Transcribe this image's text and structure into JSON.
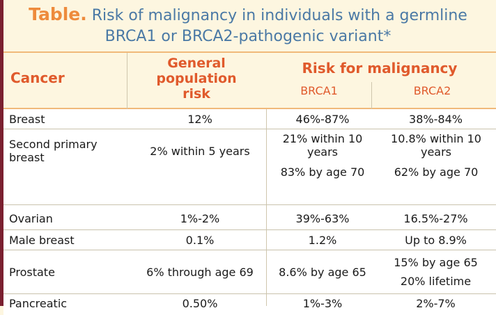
{
  "title": {
    "lead": "Table.",
    "text_line1": "Risk of malignancy in individuals with a germline",
    "text_line2": "BRCA1 or BRCA2-pathogenic variant*"
  },
  "header": {
    "cancer": "Cancer",
    "general_line1": "General",
    "general_line2": "population",
    "general_line3": "risk",
    "risk_for_malignancy": "Risk for malignancy",
    "brca1": "BRCA1",
    "brca2": "BRCA2"
  },
  "rows": [
    {
      "cancer": "Breast",
      "general": [
        "12%"
      ],
      "brca1": [
        "46%-87%"
      ],
      "brca2": [
        "38%-84%"
      ]
    },
    {
      "cancer": "Second primary breast",
      "general": [
        "2% within 5 years"
      ],
      "brca1": [
        "21% within 10 years",
        "83% by age 70"
      ],
      "brca2": [
        "10.8% within 10 years",
        "62% by age 70"
      ]
    },
    {
      "cancer": "Ovarian",
      "general": [
        "1%-2%"
      ],
      "brca1": [
        "39%-63%"
      ],
      "brca2": [
        "16.5%-27%"
      ]
    },
    {
      "cancer": "Male breast",
      "general": [
        "0.1%"
      ],
      "brca1": [
        "1.2%"
      ],
      "brca2": [
        "Up to 8.9%"
      ]
    },
    {
      "cancer": "Prostate",
      "general": [
        "6% through age 69"
      ],
      "brca1": [
        "8.6% by age 65"
      ],
      "brca2": [
        "15% by age 65",
        "20% lifetime"
      ]
    },
    {
      "cancer": "Pancreatic",
      "general": [
        "0.50%"
      ],
      "brca1": [
        "1%-3%"
      ],
      "brca2": [
        "2%-7%"
      ]
    }
  ]
}
